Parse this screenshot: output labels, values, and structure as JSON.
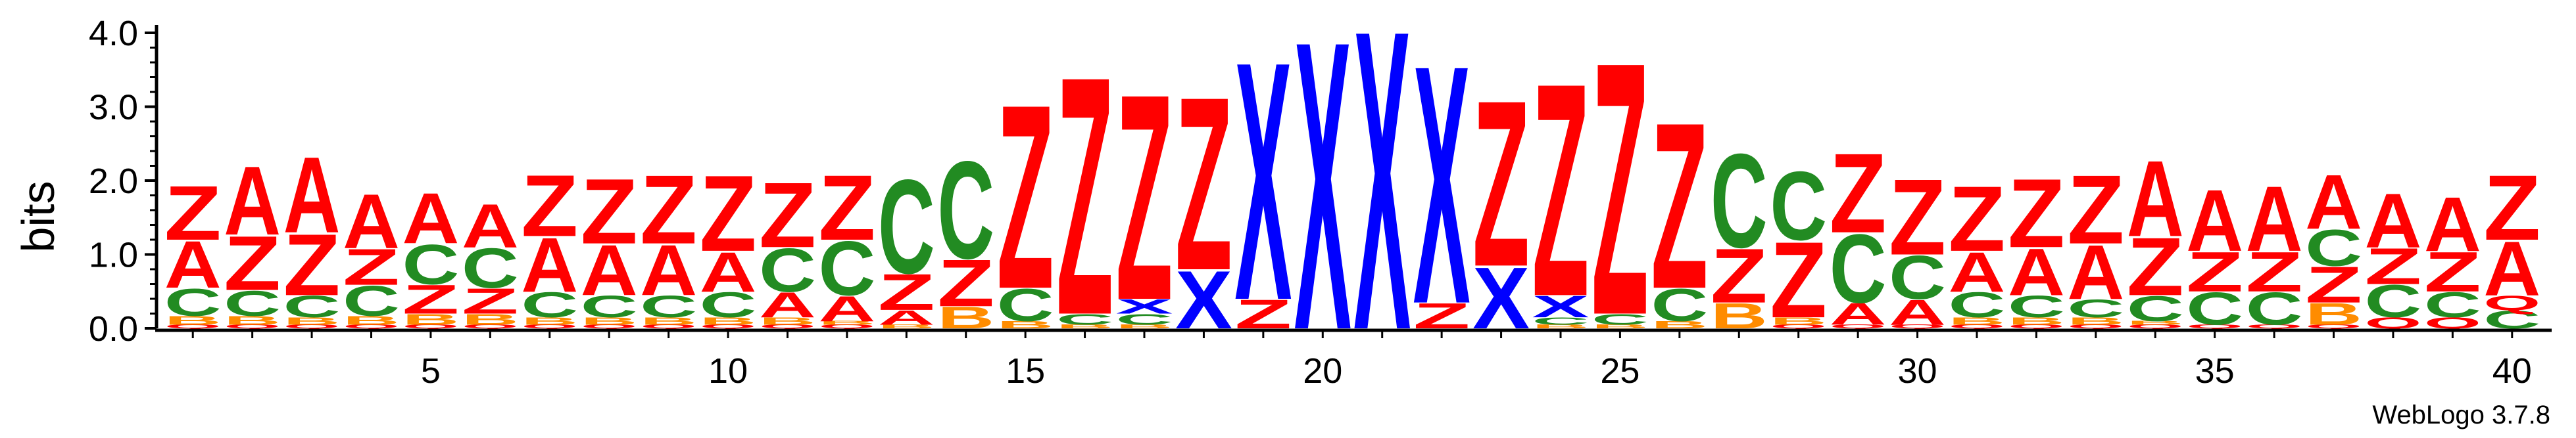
{
  "chart_data": {
    "type": "sequence-logo",
    "ylabel": "bits",
    "ylim": [
      0,
      4.0
    ],
    "y_ticks": [
      "0.0",
      "1.0",
      "2.0",
      "3.0",
      "4.0"
    ],
    "x_ticks": [
      "5",
      "10",
      "15",
      "20",
      "25",
      "30",
      "35",
      "40"
    ],
    "x_range": [
      1,
      40
    ],
    "credit": "WebLogo 3.7.8",
    "colors": {
      "Z": "#ff0000",
      "A": "#ff0000",
      "C": "#228b22",
      "X": "#0000ff",
      "B": "#ff8c00",
      "Q": "#ff0000",
      "E": "#ff8c00"
    },
    "positions": [
      {
        "pos": 1,
        "stack": [
          [
            "Q",
            0.05
          ],
          [
            "B",
            0.12
          ],
          [
            "C",
            0.38
          ],
          [
            "A",
            0.65
          ],
          [
            "Z",
            0.75
          ]
        ]
      },
      {
        "pos": 2,
        "stack": [
          [
            "Q",
            0.05
          ],
          [
            "B",
            0.12
          ],
          [
            "C",
            0.35
          ],
          [
            "Z",
            0.75
          ],
          [
            "A",
            0.95
          ]
        ]
      },
      {
        "pos": 3,
        "stack": [
          [
            "Q",
            0.05
          ],
          [
            "B",
            0.1
          ],
          [
            "C",
            0.3
          ],
          [
            "Z",
            0.85
          ],
          [
            "A",
            1.05
          ]
        ]
      },
      {
        "pos": 4,
        "stack": [
          [
            "Q",
            0.05
          ],
          [
            "B",
            0.12
          ],
          [
            "C",
            0.42
          ],
          [
            "Z",
            0.5
          ],
          [
            "A",
            0.75
          ]
        ]
      },
      {
        "pos": 5,
        "stack": [
          [
            "Q",
            0.05
          ],
          [
            "B",
            0.15
          ],
          [
            "Z",
            0.4
          ],
          [
            "C",
            0.55
          ],
          [
            "A",
            0.7
          ]
        ]
      },
      {
        "pos": 6,
        "stack": [
          [
            "Q",
            0.05
          ],
          [
            "B",
            0.15
          ],
          [
            "Z",
            0.35
          ],
          [
            "C",
            0.55
          ],
          [
            "A",
            0.6
          ]
        ]
      },
      {
        "pos": 7,
        "stack": [
          [
            "Q",
            0.05
          ],
          [
            "B",
            0.1
          ],
          [
            "C",
            0.35
          ],
          [
            "A",
            0.75
          ],
          [
            "Z",
            0.85
          ]
        ]
      },
      {
        "pos": 8,
        "stack": [
          [
            "Q",
            0.05
          ],
          [
            "B",
            0.1
          ],
          [
            "C",
            0.3
          ],
          [
            "A",
            0.7
          ],
          [
            "Z",
            0.9
          ]
        ]
      },
      {
        "pos": 9,
        "stack": [
          [
            "Q",
            0.05
          ],
          [
            "B",
            0.1
          ],
          [
            "C",
            0.3
          ],
          [
            "A",
            0.7
          ],
          [
            "Z",
            0.95
          ]
        ]
      },
      {
        "pos": 10,
        "stack": [
          [
            "Q",
            0.05
          ],
          [
            "B",
            0.1
          ],
          [
            "C",
            0.35
          ],
          [
            "A",
            0.55
          ],
          [
            "Z",
            1.05
          ]
        ]
      },
      {
        "pos": 11,
        "stack": [
          [
            "Q",
            0.05
          ],
          [
            "B",
            0.1
          ],
          [
            "A",
            0.35
          ],
          [
            "C",
            0.6
          ],
          [
            "Z",
            0.9
          ]
        ]
      },
      {
        "pos": 12,
        "stack": [
          [
            "Q",
            0.05
          ],
          [
            "B",
            0.05
          ],
          [
            "A",
            0.35
          ],
          [
            "C",
            0.75
          ],
          [
            "Z",
            0.9
          ]
        ]
      },
      {
        "pos": 13,
        "stack": [
          [
            "B",
            0.05
          ],
          [
            "A",
            0.2
          ],
          [
            "Z",
            0.5
          ],
          [
            "C",
            1.3
          ]
        ]
      },
      {
        "pos": 14,
        "stack": [
          [
            "B",
            0.3
          ],
          [
            "Z",
            0.65
          ],
          [
            "C",
            1.35
          ]
        ]
      },
      {
        "pos": 15,
        "stack": [
          [
            "B",
            0.1
          ],
          [
            "C",
            0.45
          ],
          [
            "Z",
            2.55
          ]
        ]
      },
      {
        "pos": 16,
        "stack": [
          [
            "B",
            0.05
          ],
          [
            "C",
            0.15
          ],
          [
            "Z",
            3.3
          ]
        ]
      },
      {
        "pos": 17,
        "stack": [
          [
            "B",
            0.05
          ],
          [
            "C",
            0.15
          ],
          [
            "X",
            0.2
          ],
          [
            "Z",
            2.85
          ]
        ]
      },
      {
        "pos": 18,
        "stack": [
          [
            "X",
            0.8
          ],
          [
            "Z",
            2.4
          ]
        ]
      },
      {
        "pos": 19,
        "stack": [
          [
            "Z",
            0.4
          ],
          [
            "X",
            3.3
          ]
        ]
      },
      {
        "pos": 20,
        "stack": [
          [
            "X",
            4.0
          ]
        ]
      },
      {
        "pos": 21,
        "stack": [
          [
            "X",
            4.15
          ]
        ]
      },
      {
        "pos": 22,
        "stack": [
          [
            "Z",
            0.35
          ],
          [
            "X",
            3.3
          ]
        ]
      },
      {
        "pos": 23,
        "stack": [
          [
            "X",
            0.85
          ],
          [
            "Z",
            2.3
          ]
        ]
      },
      {
        "pos": 24,
        "stack": [
          [
            "B",
            0.05
          ],
          [
            "C",
            0.1
          ],
          [
            "X",
            0.3
          ],
          [
            "Z",
            2.95
          ]
        ]
      },
      {
        "pos": 25,
        "stack": [
          [
            "B",
            0.05
          ],
          [
            "C",
            0.15
          ],
          [
            "Z",
            3.5
          ]
        ]
      },
      {
        "pos": 26,
        "stack": [
          [
            "B",
            0.1
          ],
          [
            "C",
            0.45
          ],
          [
            "Z",
            2.3
          ]
        ]
      },
      {
        "pos": 27,
        "stack": [
          [
            "B",
            0.35
          ],
          [
            "Z",
            0.75
          ],
          [
            "C",
            1.3
          ]
        ]
      },
      {
        "pos": 28,
        "stack": [
          [
            "Q",
            0.05
          ],
          [
            "B",
            0.1
          ],
          [
            "Z",
            1.05
          ],
          [
            "C",
            0.95
          ]
        ]
      },
      {
        "pos": 29,
        "stack": [
          [
            "Q",
            0.05
          ],
          [
            "A",
            0.3
          ],
          [
            "C",
            0.95
          ],
          [
            "Z",
            1.1
          ]
        ]
      },
      {
        "pos": 30,
        "stack": [
          [
            "Q",
            0.05
          ],
          [
            "A",
            0.35
          ],
          [
            "C",
            0.6
          ],
          [
            "Z",
            1.05
          ]
        ]
      },
      {
        "pos": 31,
        "stack": [
          [
            "Q",
            0.05
          ],
          [
            "B",
            0.1
          ],
          [
            "C",
            0.35
          ],
          [
            "A",
            0.55
          ],
          [
            "Z",
            0.9
          ]
        ]
      },
      {
        "pos": 32,
        "stack": [
          [
            "Q",
            0.05
          ],
          [
            "B",
            0.1
          ],
          [
            "C",
            0.3
          ],
          [
            "A",
            0.65
          ],
          [
            "Z",
            0.95
          ]
        ]
      },
      {
        "pos": 33,
        "stack": [
          [
            "Q",
            0.05
          ],
          [
            "B",
            0.1
          ],
          [
            "C",
            0.25
          ],
          [
            "A",
            0.75
          ],
          [
            "Z",
            0.95
          ]
        ]
      },
      {
        "pos": 34,
        "stack": [
          [
            "Q",
            0.05
          ],
          [
            "B",
            0.05
          ],
          [
            "C",
            0.35
          ],
          [
            "Z",
            0.8
          ],
          [
            "A",
            1.05
          ]
        ]
      },
      {
        "pos": 35,
        "stack": [
          [
            "Q",
            0.05
          ],
          [
            "C",
            0.45
          ],
          [
            "Z",
            0.55
          ],
          [
            "A",
            0.85
          ]
        ]
      },
      {
        "pos": 36,
        "stack": [
          [
            "Q",
            0.05
          ],
          [
            "C",
            0.45
          ],
          [
            "Z",
            0.55
          ],
          [
            "A",
            0.9
          ]
        ]
      },
      {
        "pos": 37,
        "stack": [
          [
            "Q",
            0.05
          ],
          [
            "B",
            0.3
          ],
          [
            "Z",
            0.5
          ],
          [
            "C",
            0.5
          ],
          [
            "A",
            0.75
          ]
        ]
      },
      {
        "pos": 38,
        "stack": [
          [
            "Q",
            0.15
          ],
          [
            "C",
            0.45
          ],
          [
            "Z",
            0.5
          ],
          [
            "A",
            0.75
          ]
        ]
      },
      {
        "pos": 39,
        "stack": [
          [
            "Q",
            0.15
          ],
          [
            "C",
            0.35
          ],
          [
            "Z",
            0.55
          ],
          [
            "A",
            0.75
          ]
        ]
      },
      {
        "pos": 40,
        "stack": [
          [
            "C",
            0.25
          ],
          [
            "Q",
            0.2
          ],
          [
            "A",
            0.75
          ],
          [
            "Z",
            0.9
          ]
        ]
      }
    ]
  }
}
